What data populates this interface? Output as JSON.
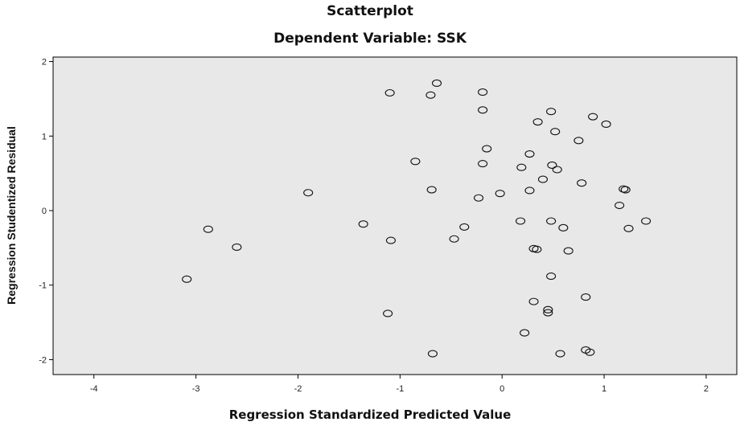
{
  "chart_data": {
    "type": "scatter",
    "title": "Scatterplot",
    "subtitle": "Dependent Variable: SSK",
    "xlabel": "Regression Standardized Predicted Value",
    "ylabel": "Regression Studentized Residual",
    "xlim": [
      -4.4,
      2.3
    ],
    "ylim": [
      -2.2,
      2.06
    ],
    "xticks": [
      -4,
      -3,
      -2,
      -1,
      0,
      1,
      2
    ],
    "yticks": [
      -2,
      -1,
      0,
      1,
      2
    ],
    "xtick_labels": [
      "-4",
      "-3",
      "-2",
      "-1",
      "0",
      "1",
      "2"
    ],
    "ytick_labels": [
      "-2",
      "-1",
      "0",
      "1",
      "2"
    ],
    "grid": false,
    "background": "#e8e8e8",
    "marker": "open-circle",
    "points": [
      {
        "x": -3.09,
        "y": -0.92
      },
      {
        "x": -2.88,
        "y": -0.25
      },
      {
        "x": -2.6,
        "y": -0.49
      },
      {
        "x": -1.9,
        "y": 0.24
      },
      {
        "x": -1.36,
        "y": -0.18
      },
      {
        "x": -1.12,
        "y": -1.38
      },
      {
        "x": -1.1,
        "y": 1.58
      },
      {
        "x": -1.09,
        "y": -0.4
      },
      {
        "x": -0.85,
        "y": 0.66
      },
      {
        "x": -0.7,
        "y": 1.55
      },
      {
        "x": -0.69,
        "y": 0.28
      },
      {
        "x": -0.68,
        "y": -1.92
      },
      {
        "x": -0.64,
        "y": 1.71
      },
      {
        "x": -0.47,
        "y": -0.38
      },
      {
        "x": -0.37,
        "y": -0.22
      },
      {
        "x": -0.23,
        "y": 0.17
      },
      {
        "x": -0.19,
        "y": 1.59
      },
      {
        "x": -0.19,
        "y": 1.35
      },
      {
        "x": -0.19,
        "y": 0.63
      },
      {
        "x": -0.15,
        "y": 0.83
      },
      {
        "x": -0.02,
        "y": 0.23
      },
      {
        "x": 0.18,
        "y": -0.14
      },
      {
        "x": 0.19,
        "y": 0.58
      },
      {
        "x": 0.22,
        "y": -1.64
      },
      {
        "x": 0.27,
        "y": 0.76
      },
      {
        "x": 0.27,
        "y": 0.27
      },
      {
        "x": 0.31,
        "y": -0.51
      },
      {
        "x": 0.31,
        "y": -1.22
      },
      {
        "x": 0.34,
        "y": -0.52
      },
      {
        "x": 0.35,
        "y": 1.19
      },
      {
        "x": 0.4,
        "y": 0.42
      },
      {
        "x": 0.45,
        "y": -1.33
      },
      {
        "x": 0.45,
        "y": -1.37
      },
      {
        "x": 0.48,
        "y": 1.33
      },
      {
        "x": 0.48,
        "y": -0.88
      },
      {
        "x": 0.48,
        "y": -0.14
      },
      {
        "x": 0.49,
        "y": 0.61
      },
      {
        "x": 0.52,
        "y": 1.06
      },
      {
        "x": 0.54,
        "y": 0.55
      },
      {
        "x": 0.57,
        "y": -1.92
      },
      {
        "x": 0.6,
        "y": -0.23
      },
      {
        "x": 0.65,
        "y": -0.54
      },
      {
        "x": 0.75,
        "y": 0.94
      },
      {
        "x": 0.78,
        "y": 0.37
      },
      {
        "x": 0.82,
        "y": -1.16
      },
      {
        "x": 0.82,
        "y": -1.87
      },
      {
        "x": 0.86,
        "y": -1.9
      },
      {
        "x": 0.89,
        "y": 1.26
      },
      {
        "x": 1.02,
        "y": 1.16
      },
      {
        "x": 1.15,
        "y": 0.07
      },
      {
        "x": 1.19,
        "y": 0.29
      },
      {
        "x": 1.21,
        "y": 0.28
      },
      {
        "x": 1.24,
        "y": -0.24
      },
      {
        "x": 1.41,
        "y": -0.14
      }
    ]
  }
}
